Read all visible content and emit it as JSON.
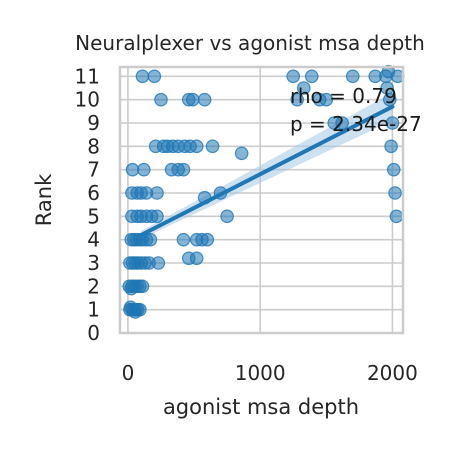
{
  "chart_data": {
    "type": "scatter",
    "title": "Neuralplexer vs agonist msa depth",
    "xlabel": "agonist msa depth",
    "ylabel": "Rank",
    "xlim": [
      -60,
      2080
    ],
    "ylim": [
      0,
      11.4
    ],
    "xticks": [
      0,
      1000,
      2000
    ],
    "yticks": [
      0,
      1,
      2,
      3,
      4,
      5,
      6,
      7,
      8,
      9,
      10,
      11
    ],
    "grid": true,
    "annotations": [
      "rho = 0.79",
      "p = 2.34e-27"
    ],
    "regression": {
      "x": [
        100,
        2000
      ],
      "y": [
        4.2,
        9.7
      ]
    },
    "colors": {
      "points": "#1f77b4",
      "line": "#1f77b4",
      "band": "#a6c8e6",
      "grid": "#cccccc",
      "frame": "#cccccc"
    },
    "points": [
      [
        15,
        1
      ],
      [
        30,
        1
      ],
      [
        45,
        1
      ],
      [
        60,
        1
      ],
      [
        75,
        1
      ],
      [
        90,
        1
      ],
      [
        20,
        1.1
      ],
      [
        55,
        0.9
      ],
      [
        10,
        2
      ],
      [
        30,
        2
      ],
      [
        50,
        2
      ],
      [
        70,
        2
      ],
      [
        90,
        2
      ],
      [
        110,
        2
      ],
      [
        25,
        1.9
      ],
      [
        15,
        3
      ],
      [
        35,
        3
      ],
      [
        55,
        3
      ],
      [
        75,
        3
      ],
      [
        100,
        3
      ],
      [
        130,
        3
      ],
      [
        160,
        3
      ],
      [
        230,
        3
      ],
      [
        25,
        4
      ],
      [
        45,
        4
      ],
      [
        65,
        4
      ],
      [
        90,
        4
      ],
      [
        110,
        4
      ],
      [
        140,
        4
      ],
      [
        170,
        4
      ],
      [
        30,
        5
      ],
      [
        70,
        5
      ],
      [
        100,
        5
      ],
      [
        140,
        5
      ],
      [
        180,
        5
      ],
      [
        220,
        5
      ],
      [
        30,
        6
      ],
      [
        70,
        6
      ],
      [
        100,
        6
      ],
      [
        140,
        6
      ],
      [
        220,
        6
      ],
      [
        35,
        7
      ],
      [
        120,
        7
      ],
      [
        330,
        7
      ],
      [
        380,
        7
      ],
      [
        420,
        7
      ],
      [
        210,
        8
      ],
      [
        270,
        8
      ],
      [
        300,
        8
      ],
      [
        340,
        8
      ],
      [
        380,
        8
      ],
      [
        430,
        8
      ],
      [
        470,
        8
      ],
      [
        520,
        8
      ],
      [
        250,
        10
      ],
      [
        460,
        10
      ],
      [
        490,
        10
      ],
      [
        580,
        10
      ],
      [
        110,
        11
      ],
      [
        200,
        11
      ],
      [
        520,
        4
      ],
      [
        560,
        4
      ],
      [
        600,
        4
      ],
      [
        420,
        4
      ],
      [
        460,
        3.2
      ],
      [
        520,
        3.2
      ],
      [
        700,
        6
      ],
      [
        750,
        5
      ],
      [
        860,
        7.7
      ],
      [
        580,
        5.8
      ],
      [
        640,
        8
      ],
      [
        1250,
        11
      ],
      [
        1280,
        10
      ],
      [
        1330,
        10.5
      ],
      [
        1390,
        11
      ],
      [
        1450,
        10
      ],
      [
        1500,
        10
      ],
      [
        1560,
        9
      ],
      [
        1620,
        9
      ],
      [
        1700,
        11
      ],
      [
        1870,
        11
      ],
      [
        1960,
        10.5
      ],
      [
        1970,
        11.2
      ],
      [
        1980,
        10
      ],
      [
        1990,
        8
      ],
      [
        2000,
        9
      ],
      [
        2010,
        7
      ],
      [
        2020,
        6
      ],
      [
        2030,
        5
      ],
      [
        2040,
        11
      ],
      [
        1950,
        11
      ]
    ]
  }
}
